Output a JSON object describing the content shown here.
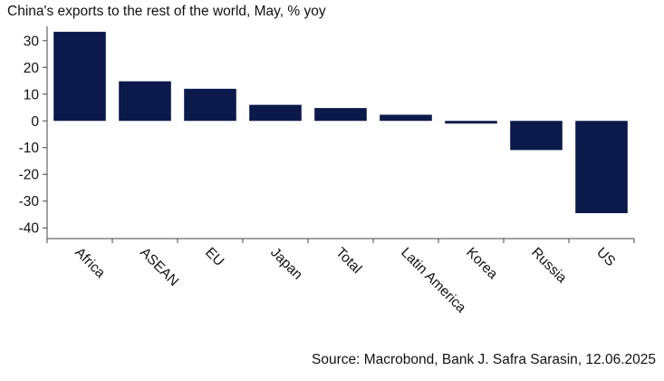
{
  "chart_data": {
    "type": "bar",
    "title": "China's exports to the rest of the world, May, % yoy",
    "source": "Source: Macrobond, Bank J. Safra Sarasin, 12.06.2025",
    "categories": [
      "Africa",
      "ASEAN",
      "EU",
      "Japan",
      "Total",
      "Latin America",
      "Korea",
      "Russia",
      "US"
    ],
    "values": [
      33.3,
      14.8,
      12.0,
      6.0,
      4.8,
      2.3,
      -1.0,
      -10.9,
      -34.5
    ],
    "ylim": [
      -44,
      34
    ],
    "yticks": [
      30,
      20,
      10,
      0,
      -10,
      -20,
      -30,
      -40
    ],
    "bar_color": "#0b1a4a",
    "grid": false,
    "legend": "none"
  }
}
